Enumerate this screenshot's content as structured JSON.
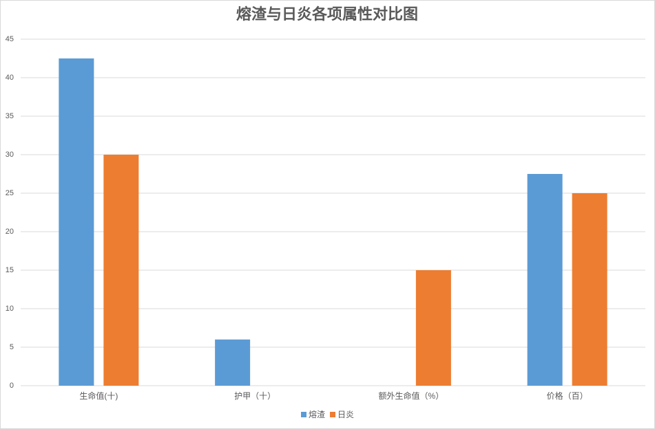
{
  "chart_data": {
    "type": "bar",
    "title": "熔渣与日炎各项属性对比图",
    "categories": [
      "生命值(十)",
      "护甲（十）",
      "额外生命值（%）",
      "价格（百）"
    ],
    "series": [
      {
        "name": "熔渣",
        "color": "#5b9bd5",
        "values": [
          42.5,
          6,
          0,
          27.5
        ]
      },
      {
        "name": "日炎",
        "color": "#ed7d31",
        "values": [
          30,
          0,
          15,
          25
        ]
      }
    ],
    "ylim": [
      0,
      45
    ],
    "yticks": [
      0,
      5,
      10,
      15,
      20,
      25,
      30,
      35,
      40,
      45
    ],
    "grid": true,
    "legend": "bottom"
  }
}
